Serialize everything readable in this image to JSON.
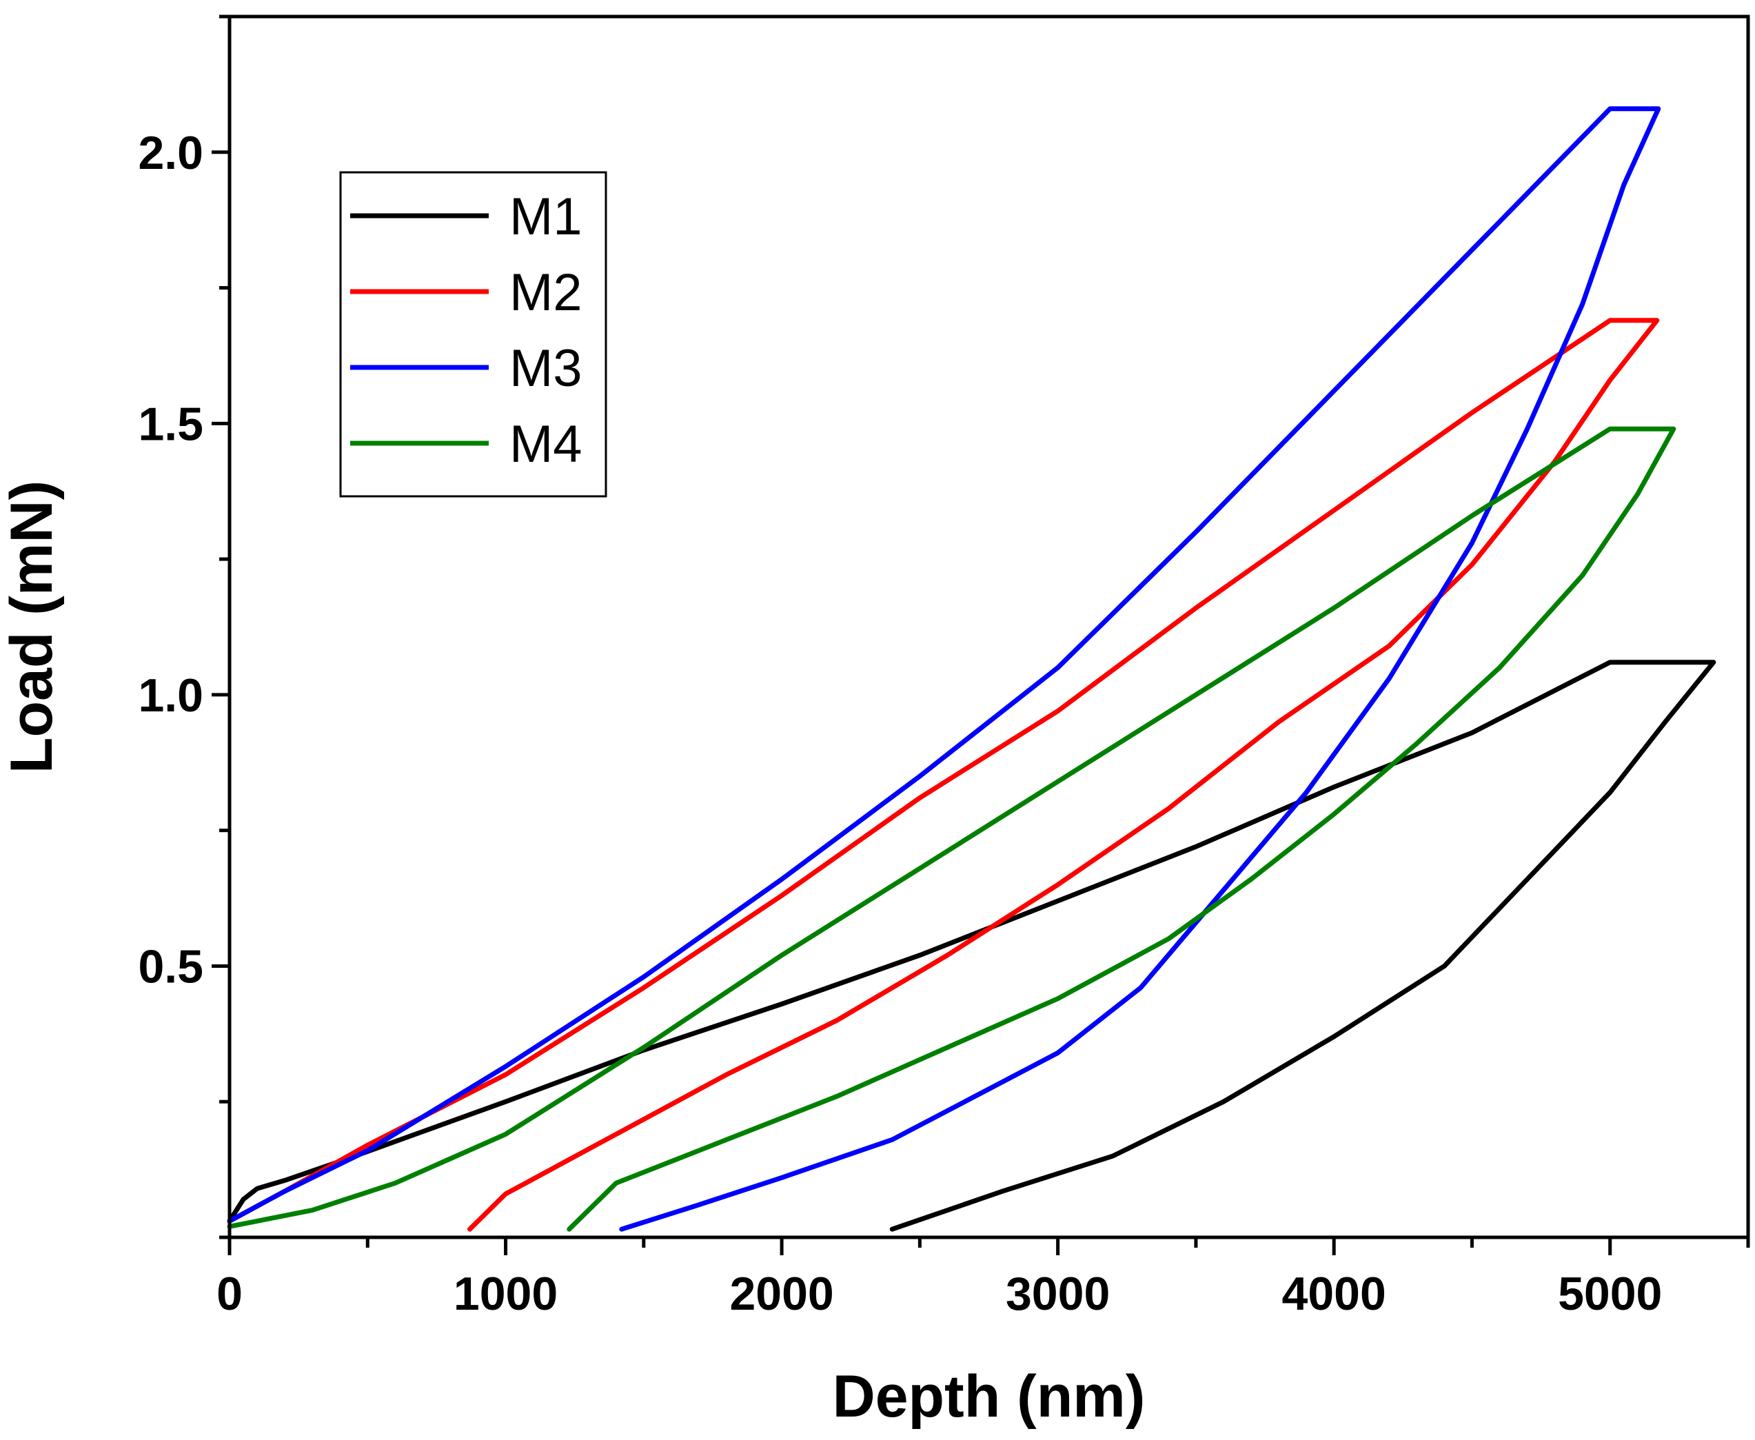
{
  "chart_data": {
    "type": "line",
    "title": "",
    "xlabel": "Depth (nm)",
    "ylabel": "Load (mN)",
    "xlim": [
      0,
      5500
    ],
    "ylim": [
      0,
      2.25
    ],
    "x_ticks": [
      0,
      1000,
      2000,
      3000,
      4000,
      5000
    ],
    "x_tick_labels": [
      "0",
      "1000",
      "2000",
      "3000",
      "4000",
      "5000"
    ],
    "x_minor_step": 500,
    "y_ticks": [
      0.5,
      1.0,
      1.5,
      2.0
    ],
    "y_tick_labels": [
      "0.5",
      "1.0",
      "1.5",
      "2.0"
    ],
    "y_minor_step": 0.25,
    "grid": false,
    "legend_position": "top-left",
    "series": [
      {
        "name": "M1",
        "color": "#000000",
        "points": [
          [
            0,
            0.03
          ],
          [
            50,
            0.07
          ],
          [
            100,
            0.09
          ],
          [
            200,
            0.105
          ],
          [
            400,
            0.14
          ],
          [
            700,
            0.195
          ],
          [
            1000,
            0.25
          ],
          [
            1500,
            0.345
          ],
          [
            2000,
            0.43
          ],
          [
            2500,
            0.52
          ],
          [
            3000,
            0.62
          ],
          [
            3500,
            0.72
          ],
          [
            4000,
            0.83
          ],
          [
            4500,
            0.93
          ],
          [
            5000,
            1.06
          ],
          [
            5375,
            1.06
          ],
          [
            5200,
            0.95
          ],
          [
            5000,
            0.82
          ],
          [
            4700,
            0.66
          ],
          [
            4400,
            0.5
          ],
          [
            4000,
            0.37
          ],
          [
            3600,
            0.25
          ],
          [
            3200,
            0.15
          ],
          [
            2800,
            0.085
          ],
          [
            2400,
            0.015
          ]
        ]
      },
      {
        "name": "M2",
        "color": "#ff0000",
        "points": [
          [
            0,
            0.03
          ],
          [
            200,
            0.085
          ],
          [
            500,
            0.17
          ],
          [
            1000,
            0.3
          ],
          [
            1500,
            0.46
          ],
          [
            2000,
            0.63
          ],
          [
            2500,
            0.81
          ],
          [
            3000,
            0.97
          ],
          [
            3500,
            1.16
          ],
          [
            4000,
            1.34
          ],
          [
            4500,
            1.52
          ],
          [
            5000,
            1.69
          ],
          [
            5170,
            1.69
          ],
          [
            5000,
            1.58
          ],
          [
            4800,
            1.43
          ],
          [
            4500,
            1.24
          ],
          [
            4200,
            1.09
          ],
          [
            3800,
            0.95
          ],
          [
            3400,
            0.79
          ],
          [
            3000,
            0.65
          ],
          [
            2600,
            0.52
          ],
          [
            2200,
            0.4
          ],
          [
            1800,
            0.3
          ],
          [
            1400,
            0.19
          ],
          [
            1000,
            0.08
          ],
          [
            870,
            0.015
          ]
        ]
      },
      {
        "name": "M3",
        "color": "#0000ff",
        "points": [
          [
            0,
            0.03
          ],
          [
            200,
            0.085
          ],
          [
            500,
            0.16
          ],
          [
            1000,
            0.315
          ],
          [
            1500,
            0.48
          ],
          [
            2000,
            0.66
          ],
          [
            2500,
            0.85
          ],
          [
            3000,
            1.05
          ],
          [
            3500,
            1.3
          ],
          [
            4000,
            1.56
          ],
          [
            4500,
            1.82
          ],
          [
            5000,
            2.08
          ],
          [
            5175,
            2.08
          ],
          [
            5050,
            1.94
          ],
          [
            4900,
            1.72
          ],
          [
            4700,
            1.49
          ],
          [
            4500,
            1.28
          ],
          [
            4200,
            1.03
          ],
          [
            3900,
            0.82
          ],
          [
            3600,
            0.64
          ],
          [
            3300,
            0.46
          ],
          [
            3000,
            0.34
          ],
          [
            2700,
            0.26
          ],
          [
            2400,
            0.18
          ],
          [
            2000,
            0.11
          ],
          [
            1700,
            0.06
          ],
          [
            1420,
            0.015
          ]
        ]
      },
      {
        "name": "M4",
        "color": "#008000",
        "points": [
          [
            0,
            0.02
          ],
          [
            300,
            0.05
          ],
          [
            600,
            0.1
          ],
          [
            1000,
            0.19
          ],
          [
            1500,
            0.35
          ],
          [
            2000,
            0.52
          ],
          [
            2500,
            0.68
          ],
          [
            3000,
            0.84
          ],
          [
            3500,
            1.0
          ],
          [
            4000,
            1.16
          ],
          [
            4500,
            1.33
          ],
          [
            5000,
            1.49
          ],
          [
            5230,
            1.49
          ],
          [
            5100,
            1.37
          ],
          [
            4900,
            1.22
          ],
          [
            4600,
            1.05
          ],
          [
            4300,
            0.91
          ],
          [
            4000,
            0.78
          ],
          [
            3700,
            0.66
          ],
          [
            3400,
            0.55
          ],
          [
            3000,
            0.44
          ],
          [
            2600,
            0.35
          ],
          [
            2200,
            0.26
          ],
          [
            1800,
            0.18
          ],
          [
            1400,
            0.1
          ],
          [
            1230,
            0.015
          ]
        ]
      }
    ]
  }
}
